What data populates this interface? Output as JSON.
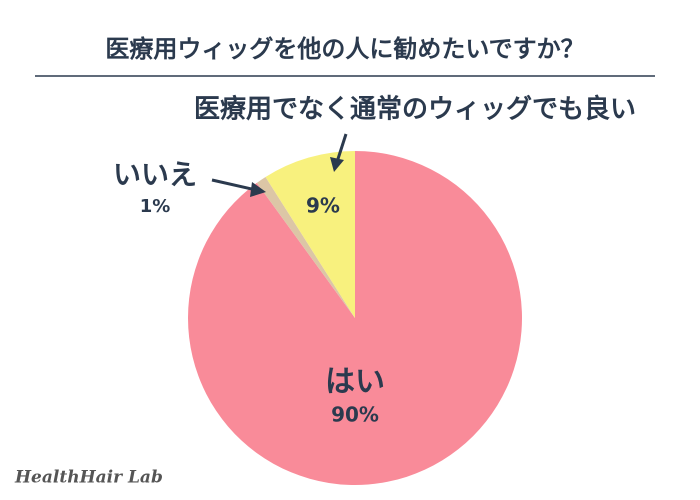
{
  "chart_data": {
    "type": "pie",
    "title": "医療用ウィッグを他の人に勧めたいですか？",
    "categories": [
      "はい",
      "いいえ",
      "医療用でなく通常のウィッグでも良い"
    ],
    "values": [
      90,
      1,
      9
    ],
    "value_labels": [
      "90%",
      "1%",
      "9%"
    ],
    "colors": [
      "#f98b99",
      "#dcc6a6",
      "#f8f17e"
    ],
    "watermark": "HealthHair Lab"
  }
}
